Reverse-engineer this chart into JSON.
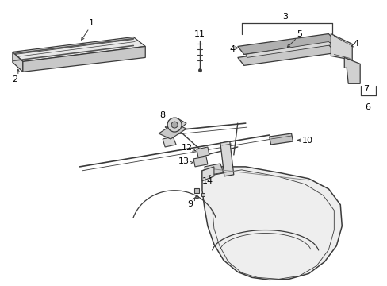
{
  "background": "#ffffff",
  "line_color": "#3a3a3a",
  "text_color": "#000000",
  "fig_width": 4.89,
  "fig_height": 3.6,
  "dpi": 100
}
